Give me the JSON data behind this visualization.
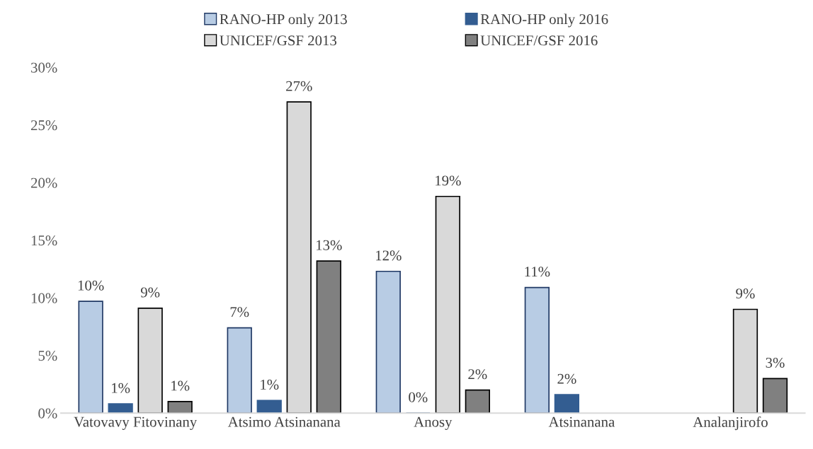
{
  "chart_data": {
    "type": "bar",
    "categories": [
      "Vatovavy Fitovinany",
      "Atsimo Atsinanana",
      "Anosy",
      "Atsinanana",
      "Analanjirofo"
    ],
    "series": [
      {
        "name": "RANO-HP only 2013",
        "color": "#b8cce4",
        "values": [
          9.7,
          7.4,
          12.3,
          10.9,
          null
        ],
        "value_labels": [
          "10%",
          "7%",
          "12%",
          "11%",
          null
        ]
      },
      {
        "name": "RANO-HP only 2016",
        "color": "#335d91",
        "values": [
          0.8,
          1.1,
          0,
          1.6,
          null
        ],
        "value_labels": [
          "1%",
          "1%",
          "0%",
          "2%",
          null
        ]
      },
      {
        "name": "UNICEF/GSF 2013",
        "color": "#d9d9d9",
        "values": [
          9.1,
          27.0,
          18.8,
          null,
          9.0
        ],
        "value_labels": [
          "9%",
          "27%",
          "19%",
          null,
          "9%"
        ]
      },
      {
        "name": "UNICEF/GSF 2016",
        "color": "#808080",
        "values": [
          1.0,
          13.2,
          2.0,
          null,
          3.0
        ],
        "value_labels": [
          "1%",
          "13%",
          "2%",
          null,
          "3%"
        ]
      }
    ],
    "ylim": [
      0,
      30
    ],
    "yticks": [
      {
        "value": 0,
        "label": "0%"
      },
      {
        "value": 5,
        "label": "5%"
      },
      {
        "value": 10,
        "label": "10%"
      },
      {
        "value": 15,
        "label": "15%"
      },
      {
        "value": 20,
        "label": "20%"
      },
      {
        "value": 25,
        "label": "25%"
      },
      {
        "value": 30,
        "label": "30%"
      }
    ],
    "legend": "top",
    "grid": false
  }
}
